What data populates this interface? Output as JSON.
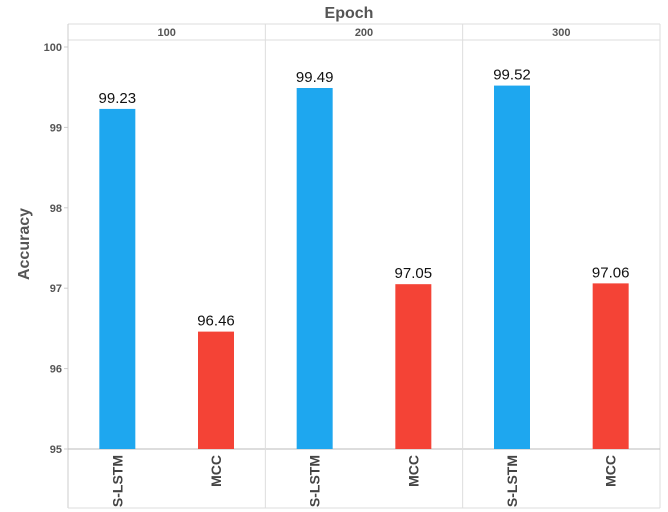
{
  "chart_data": {
    "type": "bar",
    "title": "",
    "xlabel": "Epoch",
    "ylabel": "Accuracy",
    "ylim": [
      95,
      100
    ],
    "yticks": [
      "95",
      "96",
      "97",
      "98",
      "99",
      "100"
    ],
    "grid": true,
    "groups": [
      {
        "label": "100",
        "bars": [
          {
            "category": "S-LSTM",
            "value": 99.23,
            "label": "99.23",
            "color": "#1ea7ef"
          },
          {
            "category": "MCC",
            "value": 96.46,
            "label": "96.46",
            "color": "#f44336"
          }
        ]
      },
      {
        "label": "200",
        "bars": [
          {
            "category": "S-LSTM",
            "value": 99.49,
            "label": "99.49",
            "color": "#1ea7ef"
          },
          {
            "category": "MCC",
            "value": 97.05,
            "label": "97.05",
            "color": "#f44336"
          }
        ]
      },
      {
        "label": "300",
        "bars": [
          {
            "category": "S-LSTM",
            "value": 99.52,
            "label": "99.52",
            "color": "#1ea7ef"
          },
          {
            "category": "MCC",
            "value": 97.06,
            "label": "97.06",
            "color": "#f44336"
          }
        ]
      }
    ]
  }
}
